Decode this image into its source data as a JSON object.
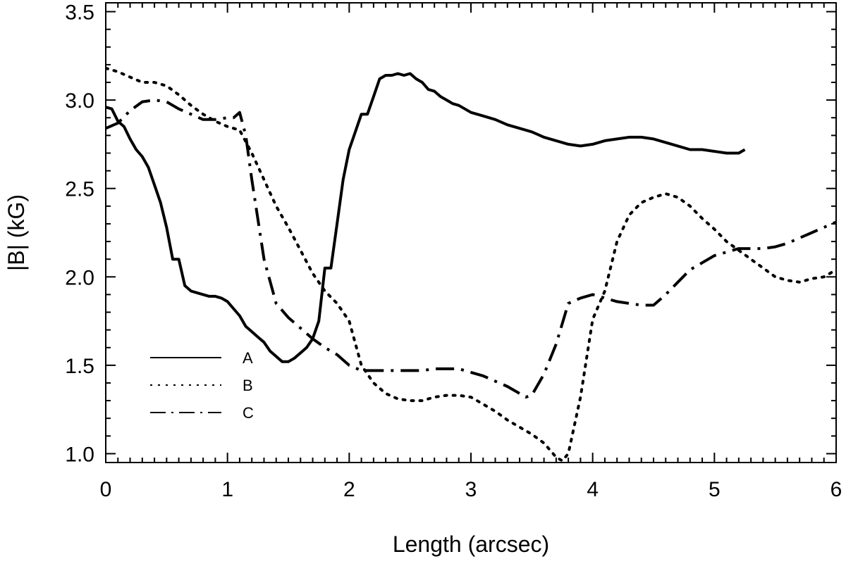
{
  "chart_data": {
    "type": "line",
    "title": "",
    "xlabel": "Length (arcsec)",
    "ylabel": "|B| (kG)",
    "xlim": [
      0,
      6
    ],
    "ylim": [
      0.95,
      3.55
    ],
    "x_ticks": [
      0,
      1,
      2,
      3,
      4,
      5,
      6
    ],
    "x_tick_labels": [
      "0",
      "1",
      "2",
      "3",
      "4",
      "5",
      "6"
    ],
    "y_ticks": [
      1.0,
      1.5,
      2.0,
      2.5,
      3.0,
      3.5
    ],
    "y_tick_labels": [
      "1.0",
      "1.5",
      "2.0",
      "2.5",
      "3.0",
      "3.5"
    ],
    "grid": false,
    "legend_position": "lower-left",
    "series": [
      {
        "name": "A",
        "style": "solid",
        "color": "#000000",
        "x": [
          0.0,
          0.05,
          0.1,
          0.15,
          0.2,
          0.25,
          0.3,
          0.35,
          0.4,
          0.45,
          0.5,
          0.55,
          0.6,
          0.65,
          0.7,
          0.75,
          0.8,
          0.85,
          0.9,
          0.95,
          1.0,
          1.05,
          1.1,
          1.15,
          1.2,
          1.25,
          1.3,
          1.35,
          1.4,
          1.45,
          1.5,
          1.55,
          1.6,
          1.65,
          1.7,
          1.75,
          1.8,
          1.85,
          1.9,
          1.95,
          2.0,
          2.05,
          2.1,
          2.15,
          2.2,
          2.25,
          2.3,
          2.35,
          2.4,
          2.45,
          2.5,
          2.55,
          2.6,
          2.65,
          2.7,
          2.75,
          2.8,
          2.85,
          2.9,
          2.95,
          3.0,
          3.1,
          3.2,
          3.3,
          3.4,
          3.5,
          3.6,
          3.7,
          3.8,
          3.9,
          4.0,
          4.1,
          4.2,
          4.3,
          4.4,
          4.5,
          4.6,
          4.7,
          4.8,
          4.9,
          5.0,
          5.1,
          5.2,
          5.25
        ],
        "y": [
          2.96,
          2.95,
          2.88,
          2.85,
          2.78,
          2.72,
          2.68,
          2.62,
          2.52,
          2.42,
          2.28,
          2.1,
          2.1,
          1.95,
          1.92,
          1.91,
          1.9,
          1.89,
          1.89,
          1.88,
          1.86,
          1.82,
          1.78,
          1.72,
          1.69,
          1.66,
          1.63,
          1.58,
          1.55,
          1.52,
          1.52,
          1.54,
          1.57,
          1.6,
          1.65,
          1.75,
          2.05,
          2.05,
          2.3,
          2.55,
          2.72,
          2.82,
          2.92,
          2.92,
          3.02,
          3.12,
          3.14,
          3.14,
          3.15,
          3.14,
          3.15,
          3.12,
          3.1,
          3.06,
          3.05,
          3.02,
          3.0,
          2.98,
          2.97,
          2.95,
          2.93,
          2.91,
          2.89,
          2.86,
          2.84,
          2.82,
          2.79,
          2.77,
          2.75,
          2.74,
          2.75,
          2.77,
          2.78,
          2.79,
          2.79,
          2.78,
          2.76,
          2.74,
          2.72,
          2.72,
          2.71,
          2.7,
          2.7,
          2.72
        ],
        "note_x_order": "ascending"
      },
      {
        "name": "B",
        "style": "dotted",
        "color": "#000000",
        "x": [
          0.0,
          0.1,
          0.2,
          0.3,
          0.4,
          0.5,
          0.6,
          0.7,
          0.8,
          0.9,
          1.0,
          1.1,
          1.2,
          1.3,
          1.4,
          1.5,
          1.6,
          1.7,
          1.8,
          1.9,
          2.0,
          2.1,
          2.2,
          2.3,
          2.4,
          2.5,
          2.6,
          2.7,
          2.8,
          2.9,
          3.0,
          3.1,
          3.2,
          3.3,
          3.4,
          3.5,
          3.6,
          3.7,
          3.75,
          3.8,
          3.9,
          4.0,
          4.1,
          4.2,
          4.3,
          4.4,
          4.5,
          4.6,
          4.7,
          4.8,
          4.9,
          5.0,
          5.1,
          5.2,
          5.3,
          5.4,
          5.5,
          5.6,
          5.7,
          5.8,
          5.9,
          6.0
        ],
        "y": [
          3.18,
          3.16,
          3.13,
          3.1,
          3.1,
          3.08,
          3.03,
          2.97,
          2.92,
          2.88,
          2.85,
          2.83,
          2.7,
          2.55,
          2.4,
          2.28,
          2.15,
          2.02,
          1.92,
          1.85,
          1.75,
          1.5,
          1.4,
          1.34,
          1.31,
          1.3,
          1.3,
          1.32,
          1.33,
          1.33,
          1.32,
          1.28,
          1.24,
          1.19,
          1.15,
          1.11,
          1.06,
          0.98,
          0.96,
          1.0,
          1.32,
          1.76,
          1.92,
          2.2,
          2.35,
          2.42,
          2.45,
          2.47,
          2.45,
          2.4,
          2.33,
          2.27,
          2.2,
          2.15,
          2.1,
          2.05,
          2.0,
          1.98,
          1.97,
          1.99,
          2.0,
          2.04
        ]
      },
      {
        "name": "C",
        "style": "dash-dot",
        "color": "#000000",
        "x": [
          0.0,
          0.1,
          0.2,
          0.3,
          0.4,
          0.5,
          0.6,
          0.7,
          0.8,
          0.9,
          1.0,
          1.05,
          1.1,
          1.15,
          1.2,
          1.3,
          1.4,
          1.5,
          1.6,
          1.7,
          1.8,
          1.9,
          2.0,
          2.1,
          2.2,
          2.3,
          2.4,
          2.5,
          2.6,
          2.7,
          2.8,
          2.9,
          3.0,
          3.1,
          3.2,
          3.3,
          3.4,
          3.45,
          3.5,
          3.6,
          3.7,
          3.8,
          3.9,
          4.0,
          4.1,
          4.2,
          4.3,
          4.4,
          4.5,
          4.6,
          4.7,
          4.8,
          4.9,
          5.0,
          5.1,
          5.2,
          5.3,
          5.4,
          5.5,
          5.6,
          5.7,
          5.8,
          5.9,
          6.0
        ],
        "y": [
          2.84,
          2.87,
          2.94,
          2.99,
          3.0,
          2.99,
          2.95,
          2.92,
          2.89,
          2.89,
          2.9,
          2.9,
          2.93,
          2.8,
          2.55,
          2.1,
          1.85,
          1.77,
          1.71,
          1.65,
          1.6,
          1.56,
          1.5,
          1.47,
          1.47,
          1.47,
          1.47,
          1.47,
          1.47,
          1.48,
          1.48,
          1.48,
          1.46,
          1.44,
          1.41,
          1.38,
          1.34,
          1.32,
          1.33,
          1.45,
          1.62,
          1.85,
          1.88,
          1.9,
          1.88,
          1.86,
          1.85,
          1.84,
          1.84,
          1.9,
          1.97,
          2.04,
          2.08,
          2.12,
          2.14,
          2.16,
          2.16,
          2.16,
          2.17,
          2.19,
          2.22,
          2.25,
          2.28,
          2.31
        ]
      }
    ]
  }
}
